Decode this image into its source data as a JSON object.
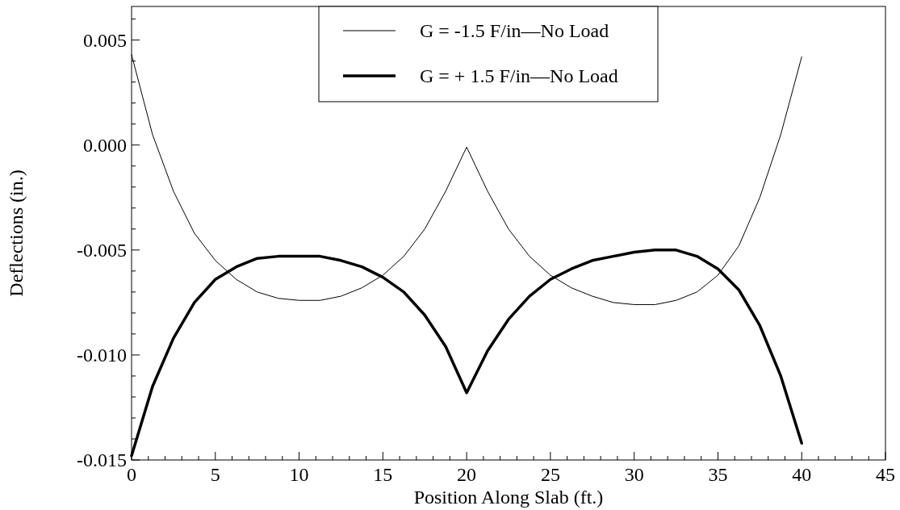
{
  "chart_data": {
    "type": "line",
    "xlabel": "Position Along Slab (ft.)",
    "ylabel": "Deflections (in.)",
    "x": [
      0,
      1.25,
      2.5,
      3.75,
      5,
      6.25,
      7.5,
      8.75,
      10,
      11.25,
      12.5,
      13.75,
      15,
      16.25,
      17.5,
      18.75,
      20,
      21.25,
      22.5,
      23.75,
      25,
      26.25,
      27.5,
      28.75,
      30,
      31.25,
      32.5,
      33.75,
      35,
      36.25,
      37.5,
      38.75,
      40
    ],
    "series": [
      {
        "name": "G = -1.5 F/in—No Load",
        "color": "#000000",
        "values": [
          0.0043,
          0.0005,
          -0.0022,
          -0.0042,
          -0.0055,
          -0.0064,
          -0.007,
          -0.0073,
          -0.0074,
          -0.0074,
          -0.0072,
          -0.0068,
          -0.0062,
          -0.0053,
          -0.004,
          -0.0022,
          -0.0001,
          -0.0022,
          -0.004,
          -0.0053,
          -0.0062,
          -0.0068,
          -0.0072,
          -0.0075,
          -0.0076,
          -0.0076,
          -0.0074,
          -0.007,
          -0.0062,
          -0.0048,
          -0.0025,
          0.0005,
          0.0042
        ]
      },
      {
        "name": "G = + 1.5 F/in—No Load",
        "color": "#000000",
        "values": [
          -0.0148,
          -0.0115,
          -0.0092,
          -0.0075,
          -0.0064,
          -0.0058,
          -0.0054,
          -0.0053,
          -0.0053,
          -0.0053,
          -0.0055,
          -0.0058,
          -0.0063,
          -0.007,
          -0.0081,
          -0.0096,
          -0.0118,
          -0.0098,
          -0.0083,
          -0.0072,
          -0.0064,
          -0.0059,
          -0.0055,
          -0.0053,
          -0.0051,
          -0.005,
          -0.005,
          -0.0053,
          -0.0059,
          -0.0069,
          -0.0086,
          -0.011,
          -0.0142
        ]
      }
    ],
    "xlim": [
      0,
      45
    ],
    "xticks": [
      0,
      5,
      10,
      15,
      20,
      25,
      30,
      35,
      40,
      45
    ],
    "ylim": [
      -0.015,
      0.0066
    ],
    "yticks": [
      {
        "value": -0.015,
        "label": "-0.015"
      },
      {
        "value": -0.01,
        "label": "-0.010"
      },
      {
        "value": -0.005,
        "label": "-0.005"
      },
      {
        "value": 0,
        "label": "0.000"
      },
      {
        "value": 0.005,
        "label": "0.005"
      }
    ],
    "grid": false,
    "legend": "top",
    "marker": "none",
    "line_style": "solid"
  }
}
